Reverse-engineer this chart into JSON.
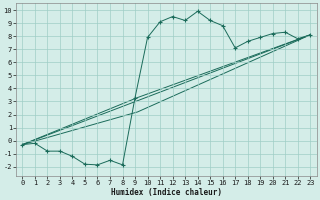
{
  "xlabel": "Humidex (Indice chaleur)",
  "bg_color": "#d4ede8",
  "grid_color": "#9fcec6",
  "line_color": "#1a6b5a",
  "xlim": [
    -0.5,
    23.5
  ],
  "ylim": [
    -2.7,
    10.5
  ],
  "xticks": [
    0,
    1,
    2,
    3,
    4,
    5,
    6,
    7,
    8,
    9,
    10,
    11,
    12,
    13,
    14,
    15,
    16,
    17,
    18,
    19,
    20,
    21,
    22,
    23
  ],
  "yticks": [
    -2,
    -1,
    0,
    1,
    2,
    3,
    4,
    5,
    6,
    7,
    8,
    9,
    10
  ],
  "series1_x": [
    0,
    1,
    2,
    3,
    4,
    5,
    6,
    7,
    8,
    9,
    10,
    11,
    12,
    13,
    14,
    15,
    16,
    17,
    18,
    19,
    20,
    21,
    22,
    23
  ],
  "series1_y": [
    -0.3,
    -0.2,
    -0.8,
    -0.8,
    -1.2,
    -1.8,
    -1.85,
    -1.5,
    -1.85,
    3.3,
    7.9,
    9.1,
    9.5,
    9.2,
    9.9,
    9.2,
    8.8,
    7.1,
    7.6,
    7.9,
    8.2,
    8.3,
    7.8,
    8.1
  ],
  "line2_x": [
    0,
    23
  ],
  "line2_y": [
    -0.3,
    8.1
  ],
  "line3_x": [
    0,
    9.2,
    23
  ],
  "line3_y": [
    -0.3,
    3.3,
    8.1
  ],
  "line4_x": [
    0,
    9.2,
    23
  ],
  "line4_y": [
    -0.3,
    2.2,
    8.1
  ]
}
